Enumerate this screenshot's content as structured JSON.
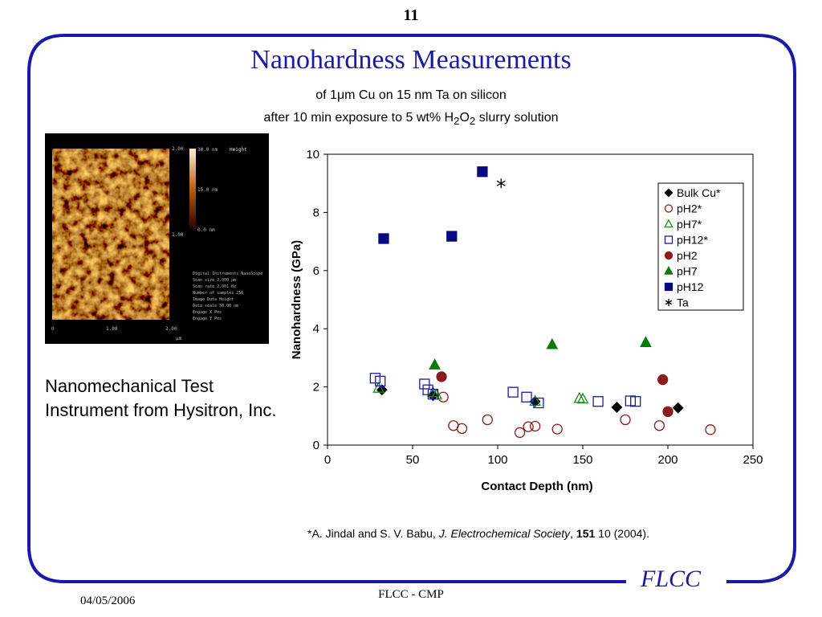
{
  "slide": {
    "page_number": "11",
    "title": "Nanohardness Measurements",
    "subtitle_line1": "of 1μm Cu on 15 nm Ta on silicon",
    "subtitle_line2_parts": [
      "after 10 min exposure to 5 wt% H",
      "2",
      "O",
      "2",
      " slurry solution"
    ],
    "caption": "Nanomechanical Test Instrument from Hysitron, Inc.",
    "reference_parts": [
      "*A. Jindal and S. V. Babu, ",
      "J. Electrochemical Society",
      ", ",
      "151",
      " 10 (2004)."
    ],
    "footer_date": "04/05/2006",
    "footer_center": "FLCC - CMP",
    "logo_text": "FLCC",
    "accent_color": "#1a1aa6"
  },
  "afm_image": {
    "scale_top": "2.00",
    "scale_mid": "1.00",
    "scale_bottom": "0",
    "axis_mid": "1.00",
    "axis_right": "2.00",
    "axis_unit": "μm",
    "colorbar_top": "30.0 nm",
    "colorbar_mid": "15.0 nm",
    "colorbar_bottom": "0.0 nm",
    "channel": "Height",
    "info_lines": [
      "Digital Instruments NanoScope",
      "Scan size        2.000 μm",
      "Scan rate        2.001 Hz",
      "Number of samples     256",
      "Image Data         Height",
      "Data scale       30.00 nm",
      "Engage X Pos",
      "Engage Y Pos"
    ]
  },
  "chart_data": {
    "type": "scatter",
    "xlabel": "Contact Depth (nm)",
    "ylabel": "Nanohardness (GPa)",
    "xlim": [
      0,
      250
    ],
    "ylim": [
      0,
      10
    ],
    "xticks": [
      0,
      50,
      100,
      150,
      200,
      250
    ],
    "yticks": [
      0,
      2,
      4,
      6,
      8,
      10
    ],
    "grid": false,
    "legend_position": "top-right",
    "series": [
      {
        "name": "Bulk Cu*",
        "marker": "diamond",
        "fill": "filled",
        "color": "#000000",
        "points": [
          [
            32,
            1.9
          ],
          [
            62,
            1.7
          ],
          [
            122,
            1.5
          ],
          [
            170,
            1.3
          ],
          [
            206,
            1.28
          ]
        ]
      },
      {
        "name": "pH2*",
        "marker": "circle",
        "fill": "open",
        "color": "#8b1a1a",
        "points": [
          [
            68,
            1.65
          ],
          [
            74,
            0.67
          ],
          [
            79,
            0.57
          ],
          [
            94,
            0.87
          ],
          [
            113,
            0.43
          ],
          [
            118,
            0.63
          ],
          [
            122,
            0.65
          ],
          [
            135,
            0.55
          ],
          [
            175,
            0.87
          ],
          [
            195,
            0.67
          ],
          [
            225,
            0.53
          ]
        ]
      },
      {
        "name": "pH7*",
        "marker": "triangle",
        "fill": "open",
        "color": "#1a8a1a",
        "points": [
          [
            30,
            1.95
          ],
          [
            62,
            1.8
          ],
          [
            64,
            1.72
          ],
          [
            122,
            1.5
          ],
          [
            148,
            1.6
          ],
          [
            150,
            1.58
          ]
        ]
      },
      {
        "name": "pH12*",
        "marker": "square",
        "fill": "open",
        "color": "#1a1aa6",
        "points": [
          [
            28,
            2.3
          ],
          [
            31,
            2.2
          ],
          [
            57,
            2.1
          ],
          [
            59,
            1.9
          ],
          [
            62,
            1.75
          ],
          [
            109,
            1.82
          ],
          [
            117,
            1.65
          ],
          [
            124,
            1.45
          ],
          [
            159,
            1.5
          ],
          [
            178,
            1.52
          ],
          [
            181,
            1.5
          ]
        ]
      },
      {
        "name": "pH2",
        "marker": "circle",
        "fill": "filled",
        "color": "#8b1a1a",
        "points": [
          [
            67,
            2.35
          ],
          [
            197,
            2.25
          ],
          [
            200,
            1.15
          ]
        ]
      },
      {
        "name": "pH7",
        "marker": "triangle",
        "fill": "filled",
        "color": "#0a7a0a",
        "points": [
          [
            63,
            2.75
          ],
          [
            132,
            3.45
          ],
          [
            187,
            3.52
          ]
        ]
      },
      {
        "name": "pH12",
        "marker": "square",
        "fill": "filled",
        "color": "#0a0a80",
        "points": [
          [
            33,
            7.1
          ],
          [
            73,
            7.18
          ],
          [
            91,
            9.4
          ]
        ]
      },
      {
        "name": "Ta",
        "marker": "asterisk",
        "fill": "open",
        "color": "#000000",
        "points": [
          [
            102,
            9.0
          ]
        ]
      }
    ]
  }
}
